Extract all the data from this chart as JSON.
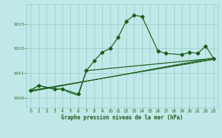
{
  "title": "Graphe pression niveau de la mer (hPa)",
  "bg_color": "#c0e8e8",
  "line_color": "#1a5c1a",
  "grid_color": "#90c8c8",
  "text_color": "#1a5c1a",
  "xlim": [
    -0.5,
    23.5
  ],
  "ylim": [
    1009.6,
    1013.8
  ],
  "yticks": [
    1010,
    1011,
    1012,
    1013
  ],
  "xticks": [
    0,
    1,
    2,
    3,
    4,
    5,
    6,
    7,
    8,
    9,
    10,
    11,
    12,
    13,
    14,
    15,
    16,
    17,
    18,
    19,
    20,
    21,
    22,
    23
  ],
  "main_x": [
    0,
    1,
    3,
    4,
    6,
    7,
    8,
    9,
    10,
    11,
    12,
    13,
    14,
    16,
    17,
    19,
    20,
    21,
    22,
    23
  ],
  "main_y": [
    1010.3,
    1010.5,
    1010.35,
    1010.35,
    1010.15,
    1011.1,
    1011.5,
    1011.85,
    1012.0,
    1012.45,
    1013.1,
    1013.35,
    1013.3,
    1011.9,
    1011.8,
    1011.75,
    1011.85,
    1011.8,
    1012.1,
    1011.6
  ],
  "line2_x": [
    0,
    1,
    3,
    4,
    5,
    6,
    7,
    23
  ],
  "line2_y": [
    1010.3,
    1010.5,
    1010.35,
    1010.35,
    1010.55,
    1010.65,
    1011.1,
    1011.6
  ],
  "straight_lines": [
    {
      "x": [
        0,
        23
      ],
      "y": [
        1010.3,
        1011.55
      ]
    },
    {
      "x": [
        0,
        23
      ],
      "y": [
        1010.28,
        1011.58
      ]
    },
    {
      "x": [
        0,
        23
      ],
      "y": [
        1010.25,
        1011.62
      ]
    }
  ],
  "dip_x": [
    3,
    4,
    5,
    6,
    7
  ],
  "dip_y": [
    1010.35,
    1010.35,
    1010.2,
    1010.1,
    1011.1
  ]
}
